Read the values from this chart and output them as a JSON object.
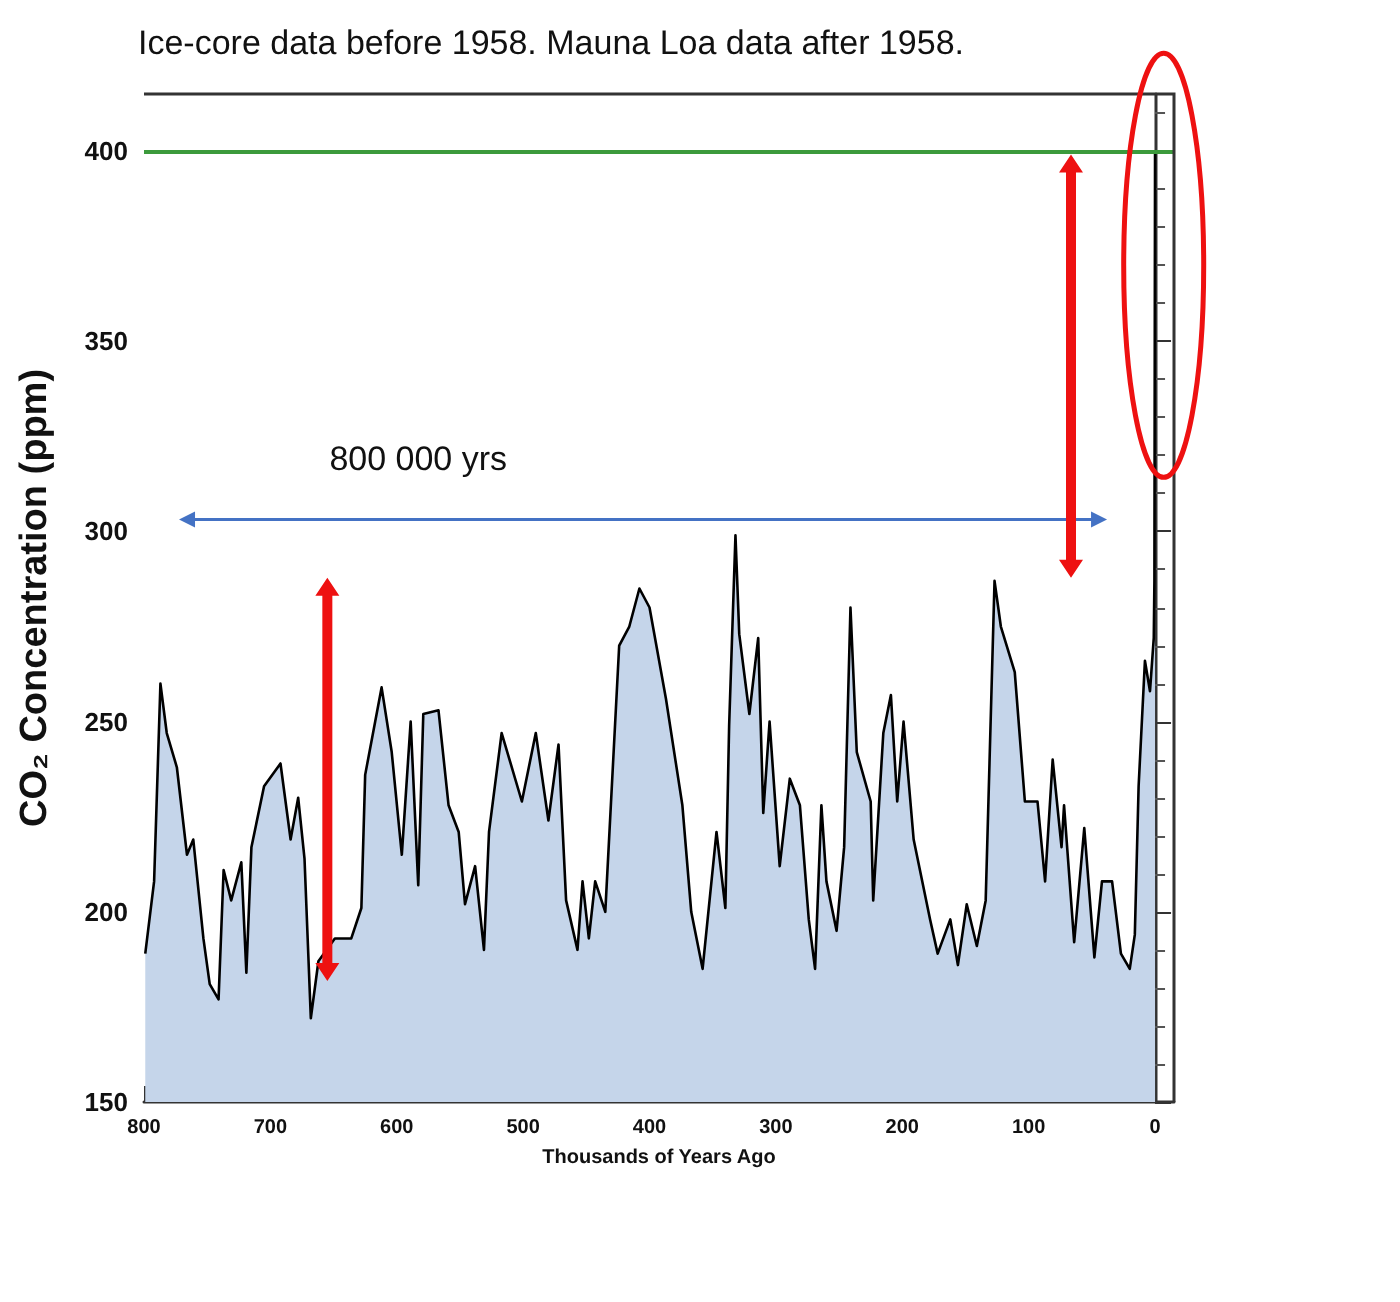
{
  "chart_data": {
    "type": "area",
    "title": "Ice-core data before 1958. Mauna Loa data after 1958.",
    "xlabel": "Thousands of Years Ago",
    "ylabel": "CO₂ Concentration (ppm)",
    "x": [
      799,
      792,
      787,
      782,
      774,
      766,
      761,
      753,
      748,
      741,
      737,
      731,
      723,
      719,
      715,
      705,
      692,
      684,
      678,
      673,
      668,
      662,
      649,
      636,
      628,
      625,
      612,
      604,
      596,
      589,
      583,
      579,
      567,
      559,
      551,
      546,
      538,
      531,
      527,
      517,
      501,
      490,
      480,
      472,
      466,
      457,
      453,
      448,
      443,
      435,
      424,
      416,
      408,
      400,
      387,
      374,
      367,
      358,
      347,
      340,
      337,
      332,
      329,
      321,
      314,
      310,
      305,
      297,
      289,
      281,
      274,
      269,
      264,
      260,
      252,
      246,
      241,
      236,
      225,
      223,
      215,
      209,
      204,
      199,
      191,
      178,
      172,
      162,
      156,
      149,
      141,
      134,
      127,
      122,
      111,
      103,
      93,
      87,
      81,
      74,
      72,
      64,
      56,
      48,
      42,
      34,
      27,
      20,
      16,
      13,
      8,
      4,
      1,
      0.5,
      0
    ],
    "series": [
      {
        "color": "#000000",
        "values": [
          189,
          208,
          260,
          247,
          238,
          215,
          219,
          193,
          181,
          177,
          211,
          203,
          213,
          184,
          217,
          233,
          239,
          219,
          230,
          214,
          172,
          187,
          193,
          193,
          201,
          236,
          259,
          242,
          215,
          250,
          207,
          252,
          253,
          228,
          221,
          202,
          212,
          190,
          221,
          247,
          229,
          247,
          224,
          244,
          203,
          190,
          208,
          193,
          208,
          200,
          270,
          275,
          285,
          280,
          256,
          228,
          200,
          185,
          221,
          201,
          249,
          299,
          273,
          252,
          272,
          226,
          250,
          212,
          235,
          228,
          198,
          185,
          228,
          208,
          195,
          217,
          280,
          242,
          229,
          203,
          247,
          257,
          229,
          250,
          219,
          198,
          189,
          198,
          186,
          202,
          191,
          203,
          287,
          275,
          263,
          229,
          229,
          208,
          240,
          217,
          228,
          192,
          222,
          188,
          208,
          208,
          189,
          185,
          194,
          233,
          266,
          258,
          272,
          287,
          400
        ]
      }
    ],
    "xlim": [
      800,
      -15
    ],
    "xticks": [
      800,
      700,
      600,
      500,
      400,
      300,
      200,
      100,
      0
    ],
    "ylim": [
      150,
      415
    ],
    "yticks": [
      150,
      200,
      250,
      300,
      350,
      400
    ],
    "ref_lines": [
      {
        "axis": "y",
        "value": 400,
        "color": "#3c9a3c"
      }
    ],
    "annotations": [
      "800 000 yrs"
    ],
    "grid": false,
    "marker": "none",
    "line_style": "solid"
  }
}
